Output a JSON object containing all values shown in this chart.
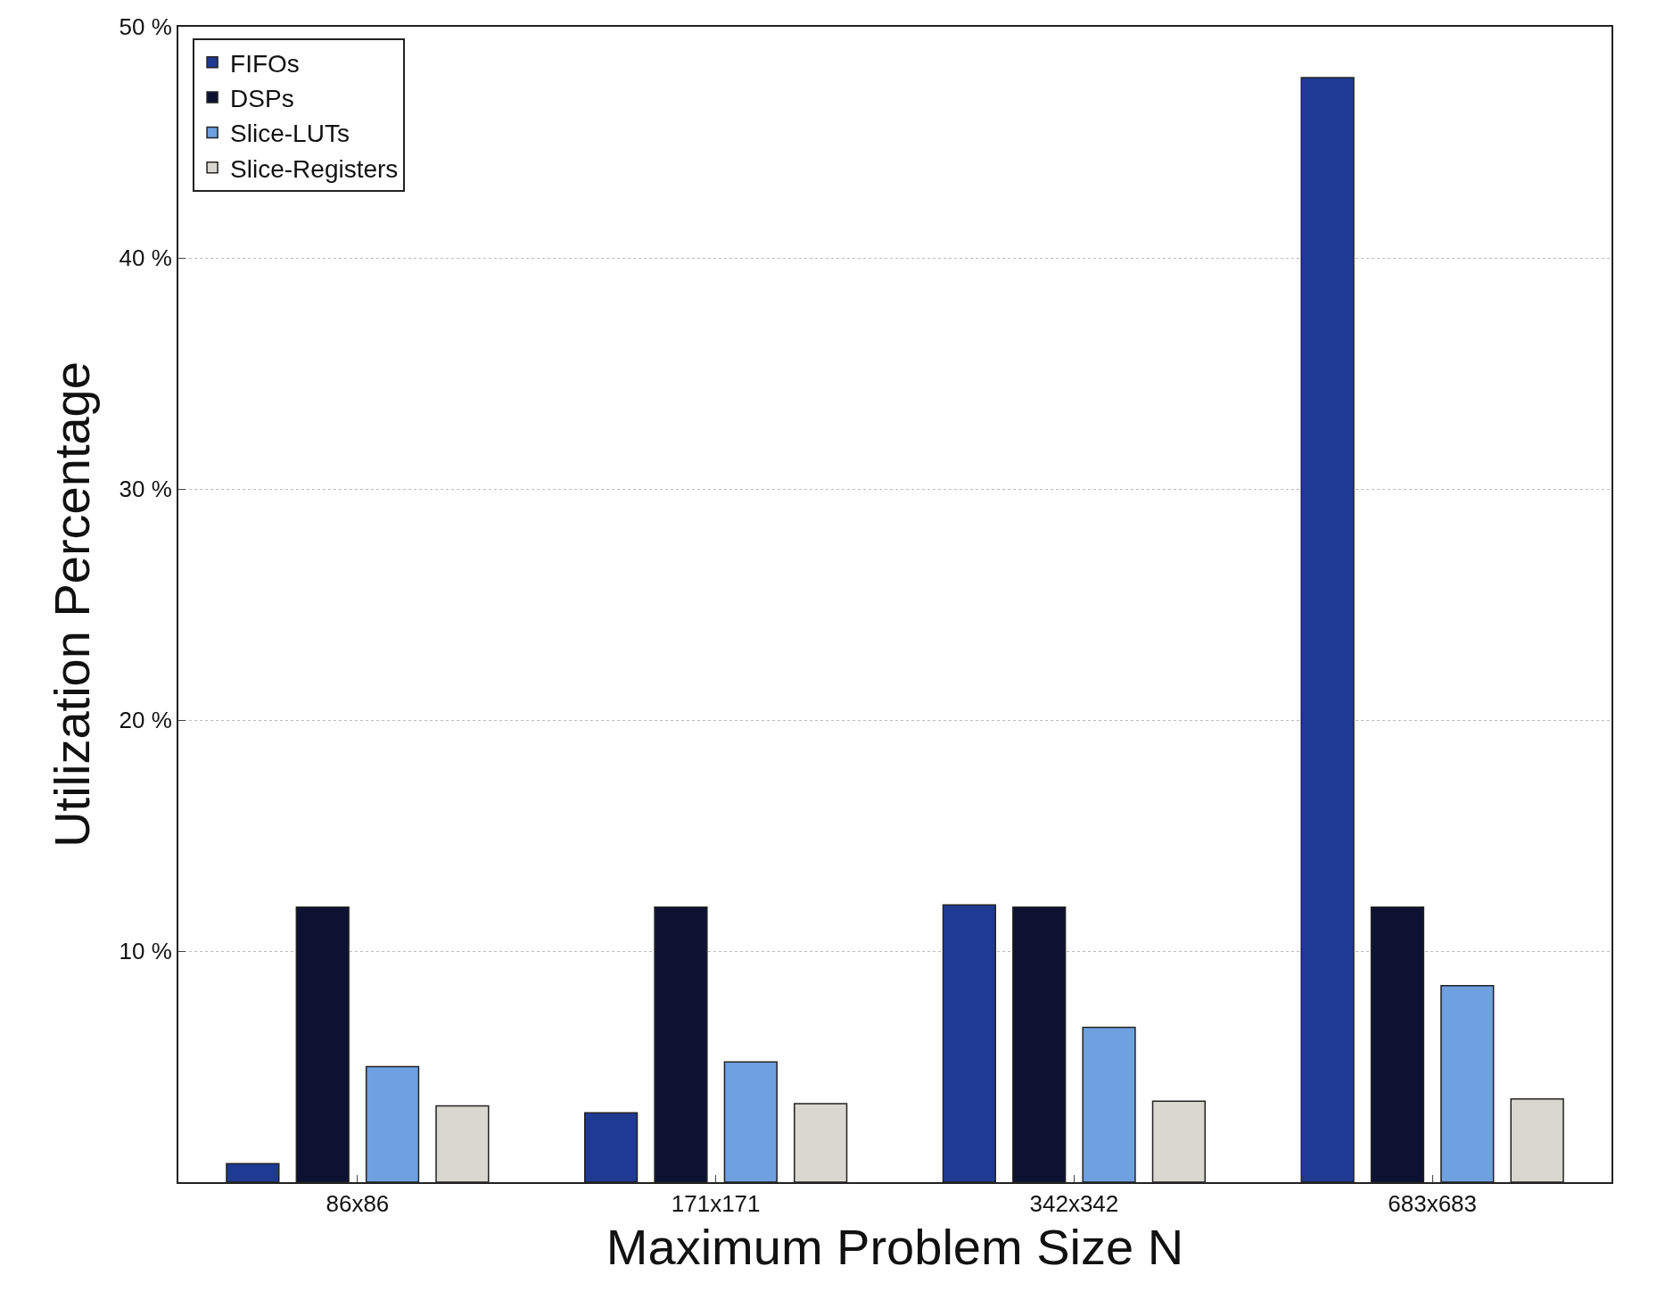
{
  "chart_data": {
    "type": "bar",
    "xlabel": "Maximum Problem Size N",
    "ylabel": "Utilization Percentage",
    "categories": [
      "86x86",
      "171x171",
      "342x342",
      "683x683"
    ],
    "series": [
      {
        "name": "FIFOs",
        "color": "#1f3a93",
        "values": [
          0.8,
          3.0,
          12.0,
          47.8
        ]
      },
      {
        "name": "DSPs",
        "color": "#0d1233",
        "values": [
          11.9,
          11.9,
          11.9,
          11.9
        ]
      },
      {
        "name": "Slice-LUTs",
        "color": "#6fa0e0",
        "values": [
          5.0,
          5.2,
          6.7,
          8.5
        ]
      },
      {
        "name": "Slice-Registers",
        "color": "#d8d8d0",
        "values": [
          3.3,
          3.4,
          3.5,
          3.6
        ]
      }
    ],
    "ylim": [
      0,
      50
    ],
    "yticks": [
      {
        "value": 0,
        "label": null
      },
      {
        "value": 10,
        "label": "10 %"
      },
      {
        "value": 20,
        "label": "20 %"
      },
      {
        "value": 30,
        "label": "30 %"
      },
      {
        "value": 40,
        "label": "40 %"
      },
      {
        "value": 50,
        "label": "50 %"
      }
    ],
    "grid": "y",
    "legend": "top left"
  }
}
